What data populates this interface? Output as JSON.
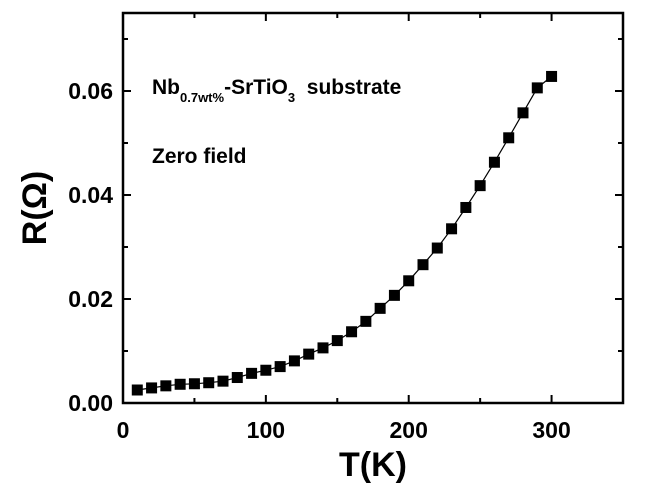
{
  "chart_data": {
    "type": "scatter",
    "xlabel": "T(K)",
    "ylabel": "R(Ω)",
    "xlim": [
      0,
      350
    ],
    "ylim": [
      0,
      0.075
    ],
    "x_ticks": [
      "0",
      "100",
      "200",
      "300"
    ],
    "y_ticks": [
      "0.00",
      "0.02",
      "0.04",
      "0.06"
    ],
    "grid": false,
    "annotations": {
      "material_prefix": "Nb",
      "material_sub1": "0.7wt%",
      "material_mid": "-SrTiO",
      "material_sub2": "3",
      "material_suffix": "  substrate",
      "condition": "Zero field"
    },
    "series": [
      {
        "marker": "square",
        "color": "#000000",
        "connected": true,
        "points": [
          [
            10,
            0.0025
          ],
          [
            20,
            0.0029
          ],
          [
            30,
            0.0033
          ],
          [
            40,
            0.0036
          ],
          [
            50,
            0.0037
          ],
          [
            60,
            0.0039
          ],
          [
            70,
            0.0042
          ],
          [
            80,
            0.0049
          ],
          [
            90,
            0.0057
          ],
          [
            100,
            0.0063
          ],
          [
            110,
            0.007
          ],
          [
            120,
            0.0081
          ],
          [
            130,
            0.0094
          ],
          [
            140,
            0.0106
          ],
          [
            150,
            0.012
          ],
          [
            160,
            0.0137
          ],
          [
            170,
            0.0157
          ],
          [
            180,
            0.0182
          ],
          [
            190,
            0.0207
          ],
          [
            200,
            0.0235
          ],
          [
            210,
            0.0266
          ],
          [
            220,
            0.0298
          ],
          [
            230,
            0.0335
          ],
          [
            240,
            0.0376
          ],
          [
            250,
            0.0418
          ],
          [
            260,
            0.0463
          ],
          [
            270,
            0.051
          ],
          [
            280,
            0.0558
          ],
          [
            290,
            0.0606
          ],
          [
            300,
            0.0628
          ]
        ]
      }
    ]
  }
}
